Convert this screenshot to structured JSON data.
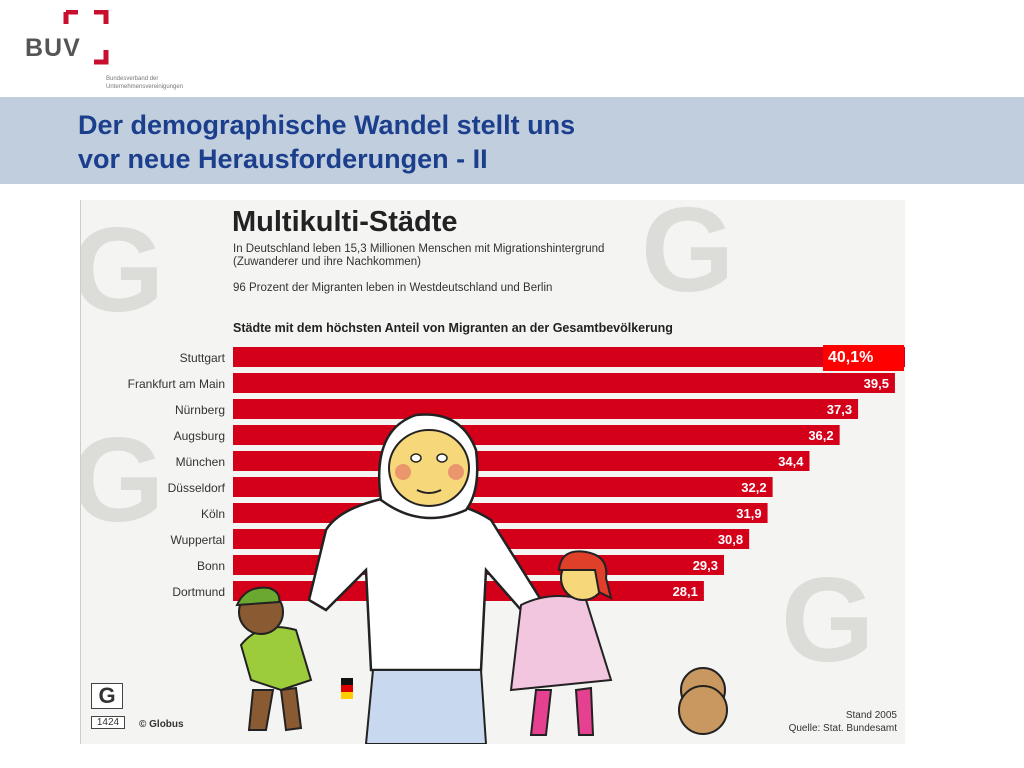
{
  "header": {
    "logo_text": "BUV",
    "logo_subtitle_line1": "Bundesverband der",
    "logo_subtitle_line2": "Unternehmensvereinigungen",
    "title_line1": "Der demographische Wandel stellt uns",
    "title_line2": "vor neue Herausforderungen - II",
    "accent_color": "#c8102e",
    "title_color": "#1b3f8c",
    "band_color": "#c0cedd"
  },
  "highlight_label": "40,1%",
  "figure": {
    "title": "Multikulti-Städte",
    "subtitle_line1": "In Deutschland leben 15,3 Millionen Menschen mit Migrationshintergrund",
    "subtitle_line2": "(Zuwanderer und ihre Nachkommen)",
    "note": "96 Prozent der Migranten leben in Westdeutschland und Berlin",
    "chart_heading": "Städte mit dem höchsten Anteil von Migranten an der Gesamtbevölkerung",
    "logo_letter": "G",
    "graphic_number": "1424",
    "credit": "© Globus",
    "stand": "Stand 2005",
    "source": "Quelle: Stat. Bundesamt"
  },
  "chart_data": {
    "type": "bar",
    "orientation": "horizontal",
    "title": "Städte mit dem höchsten Anteil von Migranten an der Gesamtbevölkerung",
    "categories": [
      "Stuttgart",
      "Frankfurt am Main",
      "Nürnberg",
      "Augsburg",
      "München",
      "Düsseldorf",
      "Köln",
      "Wuppertal",
      "Bonn",
      "Dortmund"
    ],
    "values": [
      40.1,
      39.5,
      37.3,
      36.2,
      34.4,
      32.2,
      31.9,
      30.8,
      29.3,
      28.1
    ],
    "value_labels": [
      "40,1%",
      "39,5",
      "37,3",
      "36,2",
      "34,4",
      "32,2",
      "31,9",
      "30,8",
      "29,3",
      "28,1"
    ],
    "bar_color": "#d4001a",
    "label_color": "#ffffff",
    "xlim": [
      0,
      40.1
    ],
    "grid": false,
    "legend": "none"
  }
}
